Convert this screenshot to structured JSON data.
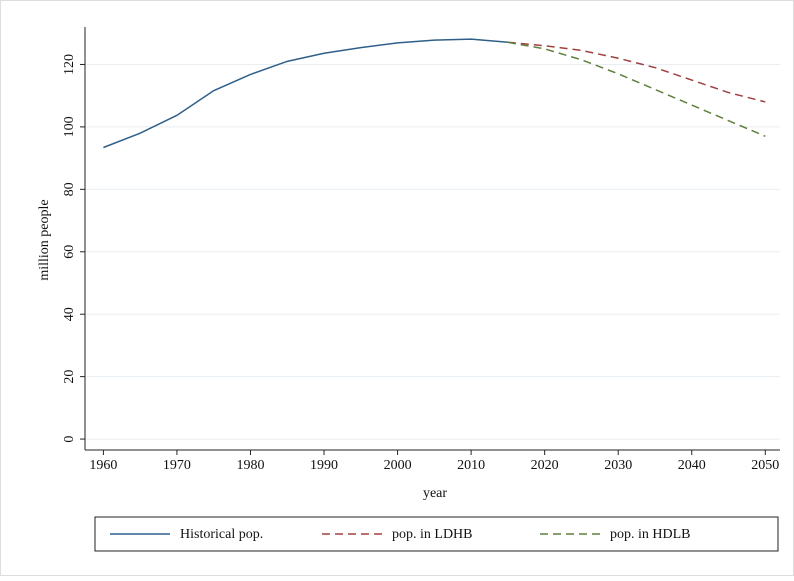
{
  "chart_data": {
    "type": "line",
    "x_label": "year",
    "y_label": "million people",
    "x": [
      1960,
      1965,
      1970,
      1975,
      1980,
      1985,
      1990,
      1995,
      2000,
      2005,
      2010,
      2015,
      2020,
      2025,
      2030,
      2035,
      2040,
      2045,
      2050
    ],
    "series": [
      {
        "name": "Historical pop.",
        "color": "#2f5f8a",
        "dash": "solid",
        "values": [
          93.4,
          98,
          103.7,
          111.6,
          116.8,
          121,
          123.6,
          125.4,
          126.9,
          127.8,
          128.1,
          127.1,
          null,
          null,
          null,
          null,
          null,
          null,
          null
        ]
      },
      {
        "name": "pop. in LDHB",
        "color": "#a04040",
        "dash": "dashed",
        "values": [
          null,
          null,
          null,
          null,
          null,
          null,
          null,
          null,
          null,
          null,
          null,
          127.1,
          126,
          124.5,
          122,
          119,
          115,
          111,
          108
        ]
      },
      {
        "name": "pop. in HDLB",
        "color": "#5f7f3f",
        "dash": "dashed",
        "values": [
          null,
          null,
          null,
          null,
          null,
          null,
          null,
          null,
          null,
          null,
          null,
          127.1,
          125,
          121.5,
          117,
          112,
          107,
          102,
          97
        ]
      }
    ],
    "xlim": [
      1957.5,
      2052
    ],
    "ylim": [
      -3.5,
      132
    ],
    "xticks": [
      1960,
      1970,
      1980,
      1990,
      2000,
      2010,
      2020,
      2030,
      2040,
      2050
    ],
    "yticks": [
      0,
      20,
      40,
      60,
      80,
      100,
      120
    ],
    "grid": true,
    "legend": "bottom"
  }
}
